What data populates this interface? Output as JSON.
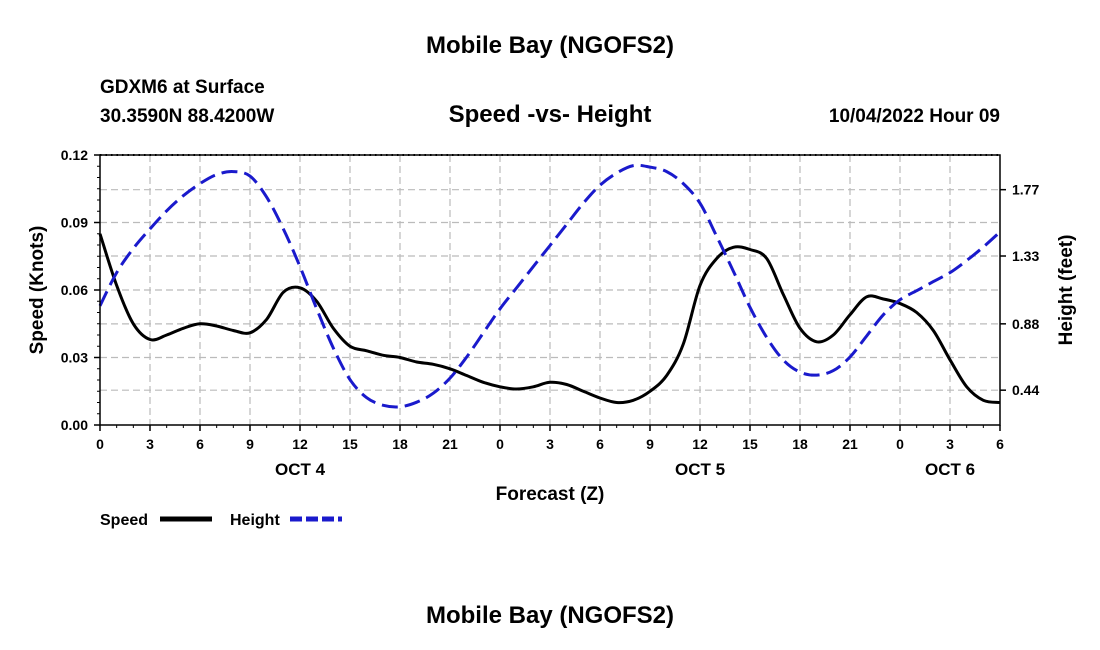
{
  "page": {
    "top_title": "Mobile Bay (NGOFS2)",
    "bottom_title": "Mobile Bay (NGOFS2)",
    "station": "GDXM6 at Surface",
    "coords": "30.3590N  88.4200W",
    "timestamp": "10/04/2022 Hour 09"
  },
  "chart_data": {
    "type": "line",
    "title": "Speed -vs- Height",
    "xlabel": "Forecast (Z)",
    "ylabel": "Speed (Knots)",
    "y2label": "Height (feet)",
    "x_range": [
      0,
      54
    ],
    "ylim": [
      0,
      0.12
    ],
    "y2lim": [
      0.209,
      2.0
    ],
    "y_ticks": [
      "0.00",
      "0.03",
      "0.06",
      "0.09",
      "0.12"
    ],
    "y2_ticks": [
      "0.44",
      "0.88",
      "1.33",
      "1.77"
    ],
    "x_tick_labels": [
      "0",
      "3",
      "6",
      "9",
      "12",
      "15",
      "18",
      "21",
      "0",
      "3",
      "6",
      "9",
      "12",
      "15",
      "18",
      "21",
      "0",
      "3",
      "6"
    ],
    "date_labels": [
      {
        "label": "OCT 4",
        "hour": 12
      },
      {
        "label": "OCT 5",
        "hour": 36
      },
      {
        "label": "OCT 6",
        "hour": 51
      }
    ],
    "grid": true,
    "legend": {
      "position": "bottom-left"
    },
    "series": [
      {
        "name": "Speed",
        "axis": "left",
        "color": "#000000",
        "dash": false,
        "x": [
          0,
          1,
          2,
          3,
          4,
          5,
          6,
          7,
          8,
          9,
          10,
          11,
          12,
          13,
          14,
          15,
          16,
          17,
          18,
          19,
          20,
          21,
          22,
          23,
          24,
          25,
          26,
          27,
          28,
          29,
          30,
          31,
          32,
          33,
          34,
          35,
          36,
          37,
          38,
          39,
          40,
          41,
          42,
          43,
          44,
          45,
          46,
          47,
          48,
          49,
          50,
          51,
          52,
          53,
          54
        ],
        "values": [
          0.085,
          0.062,
          0.045,
          0.038,
          0.04,
          0.043,
          0.045,
          0.044,
          0.042,
          0.041,
          0.047,
          0.059,
          0.061,
          0.055,
          0.043,
          0.035,
          0.033,
          0.031,
          0.03,
          0.028,
          0.027,
          0.025,
          0.022,
          0.019,
          0.017,
          0.016,
          0.017,
          0.019,
          0.018,
          0.015,
          0.012,
          0.01,
          0.011,
          0.015,
          0.022,
          0.036,
          0.062,
          0.074,
          0.079,
          0.078,
          0.074,
          0.058,
          0.043,
          0.037,
          0.04,
          0.049,
          0.057,
          0.056,
          0.054,
          0.05,
          0.042,
          0.029,
          0.017,
          0.011,
          0.01
        ]
      },
      {
        "name": "Height",
        "axis": "right",
        "color": "#1a1acc",
        "dash": true,
        "x": [
          0,
          1,
          2,
          3,
          4,
          5,
          6,
          7,
          8,
          9,
          10,
          11,
          12,
          13,
          14,
          15,
          16,
          17,
          18,
          19,
          20,
          21,
          22,
          23,
          24,
          25,
          26,
          27,
          28,
          29,
          30,
          31,
          32,
          33,
          34,
          35,
          36,
          37,
          38,
          39,
          40,
          41,
          42,
          43,
          44,
          45,
          46,
          47,
          48,
          49,
          50,
          51,
          52,
          53,
          54
        ],
        "values": [
          1.0,
          1.22,
          1.38,
          1.51,
          1.63,
          1.73,
          1.81,
          1.87,
          1.89,
          1.86,
          1.72,
          1.51,
          1.26,
          0.98,
          0.72,
          0.51,
          0.39,
          0.34,
          0.33,
          0.36,
          0.42,
          0.52,
          0.66,
          0.82,
          0.98,
          1.12,
          1.26,
          1.4,
          1.54,
          1.68,
          1.8,
          1.88,
          1.93,
          1.92,
          1.89,
          1.81,
          1.68,
          1.46,
          1.23,
          0.99,
          0.79,
          0.64,
          0.56,
          0.54,
          0.57,
          0.66,
          0.8,
          0.94,
          1.04,
          1.1,
          1.16,
          1.22,
          1.3,
          1.39,
          1.49
        ]
      }
    ]
  }
}
